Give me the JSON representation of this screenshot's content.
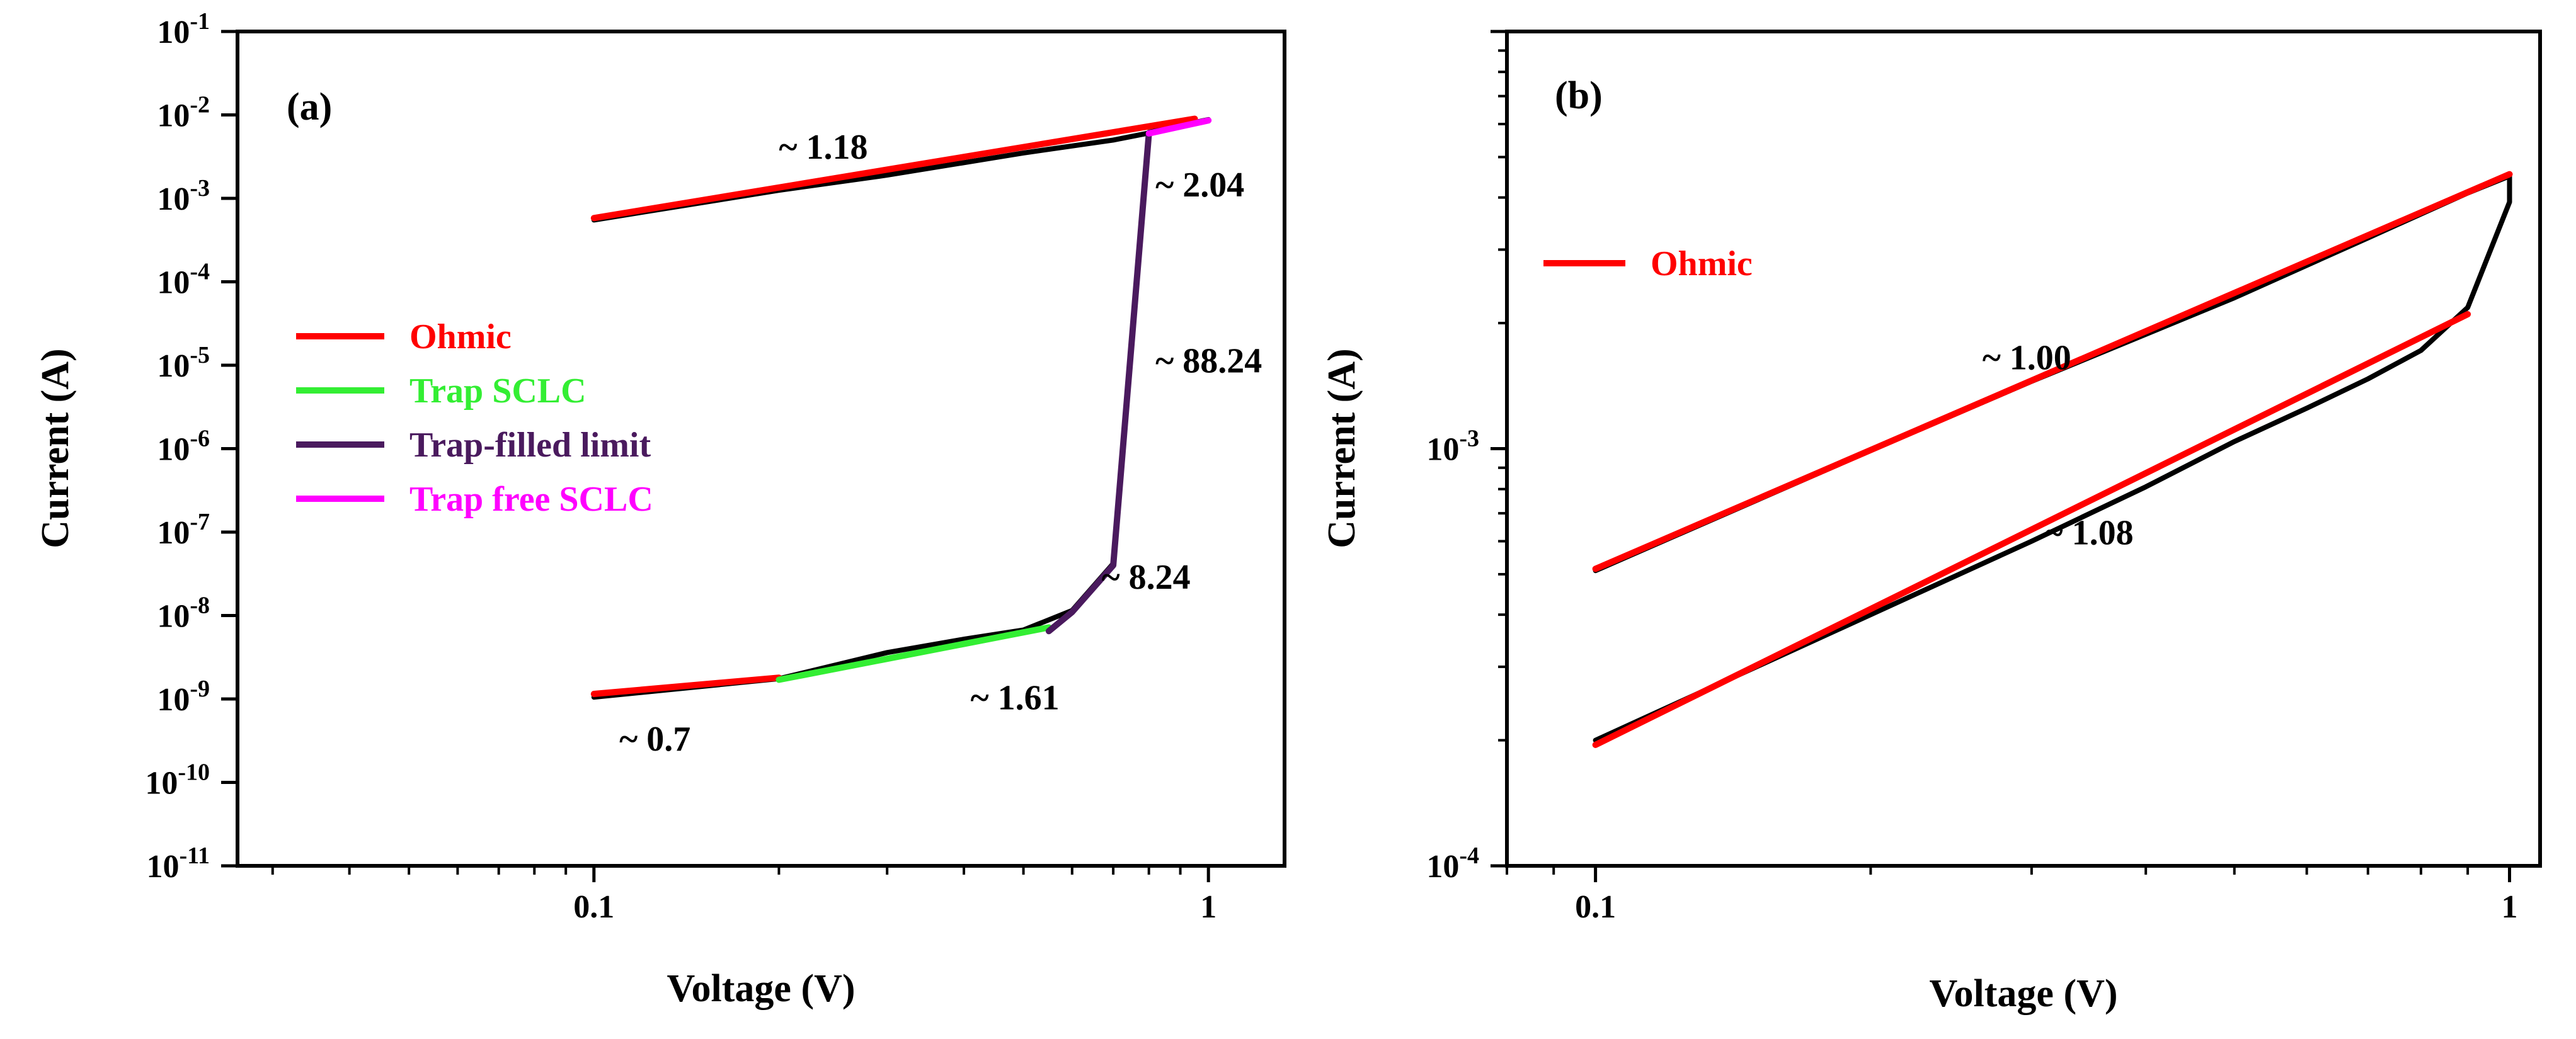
{
  "chart_data": [
    {
      "type": "line",
      "panel_label": "(a)",
      "xlabel": "Voltage (V)",
      "ylabel": "Current (A)",
      "xscale": "log",
      "yscale": "log",
      "xlim": [
        0.0263,
        1.33
      ],
      "ylim": [
        1e-11,
        0.1
      ],
      "x_ticks": [
        {
          "value": 0.1,
          "label": "0.1"
        },
        {
          "value": 1,
          "label": "1"
        }
      ],
      "y_ticks": [
        {
          "value": 1e-11,
          "base": "10",
          "exp": "-11"
        },
        {
          "value": 1e-10,
          "base": "10",
          "exp": "-10"
        },
        {
          "value": 1e-09,
          "base": "10",
          "exp": "-9"
        },
        {
          "value": 1e-08,
          "base": "10",
          "exp": "-8"
        },
        {
          "value": 1e-07,
          "base": "10",
          "exp": "-7"
        },
        {
          "value": 1e-06,
          "base": "10",
          "exp": "-6"
        },
        {
          "value": 1e-05,
          "base": "10",
          "exp": "-5"
        },
        {
          "value": 0.0001,
          "base": "10",
          "exp": "-4"
        },
        {
          "value": 0.001,
          "base": "10",
          "exp": "-3"
        },
        {
          "value": 0.01,
          "base": "10",
          "exp": "-2"
        },
        {
          "value": 0.1,
          "base": "10",
          "exp": "-1"
        }
      ],
      "legend_position": "middle-left",
      "series": [
        {
          "name": "Data",
          "color": "#000000",
          "in_legend": false,
          "points": [
            [
              0.1,
              1.05e-09
            ],
            [
              0.2,
              1.75e-09
            ],
            [
              0.3,
              3.6e-09
            ],
            [
              0.4,
              5.2e-09
            ],
            [
              0.5,
              6.7e-09
            ],
            [
              0.6,
              1.15e-08
            ],
            [
              0.7,
              4.2e-08
            ],
            [
              0.8,
              0.0062
            ],
            [
              0.9,
              0.0075
            ],
            [
              1.0,
              0.0088
            ],
            [
              0.9,
              0.0072
            ],
            [
              0.7,
              0.005
            ],
            [
              0.5,
              0.0035
            ],
            [
              0.3,
              0.0019
            ],
            [
              0.2,
              0.00125
            ],
            [
              0.1,
              0.00055
            ]
          ]
        },
        {
          "name": "Ohmic",
          "color": "#ff0000",
          "in_legend": true,
          "points": [
            [
              0.1,
              1.15e-09
            ],
            [
              0.2,
              1.8e-09
            ]
          ]
        },
        {
          "name": "Ohmic",
          "color": "#ff0000",
          "in_legend": false,
          "points": [
            [
              0.1,
              0.00058
            ],
            [
              0.95,
              0.009
            ]
          ]
        },
        {
          "name": "Trap SCLC",
          "color": "#33ee33",
          "in_legend": true,
          "points": [
            [
              0.2,
              1.7e-09
            ],
            [
              0.55,
              7.2e-09
            ]
          ]
        },
        {
          "name": "Trap-filled limit",
          "color": "#4a1a5e",
          "in_legend": true,
          "points": [
            [
              0.55,
              6.5e-09
            ],
            [
              0.6,
              1.1e-08
            ],
            [
              0.7,
              4e-08
            ],
            [
              0.8,
              0.006
            ]
          ]
        },
        {
          "name": "Trap free SCLC",
          "color": "#ff00ff",
          "in_legend": true,
          "points": [
            [
              0.8,
              0.006
            ],
            [
              1.0,
              0.0086
            ]
          ]
        }
      ],
      "annotations": [
        {
          "text": "~ 1.18",
          "x": 0.2,
          "y": 0.003
        },
        {
          "text": "~ 2.04",
          "x": 0.82,
          "y": 0.00105
        },
        {
          "text": "~ 88.24",
          "x": 0.82,
          "y": 8.2e-06
        },
        {
          "text": "~ 8.24",
          "x": 0.67,
          "y": 2.1e-08
        },
        {
          "text": "~ 1.61",
          "x": 0.41,
          "y": 7.5e-10
        },
        {
          "text": "~ 0.7",
          "x": 0.11,
          "y": 2.4e-10
        }
      ]
    },
    {
      "type": "line",
      "panel_label": "(b)",
      "xlabel": "Voltage (V)",
      "ylabel": "Current (A)",
      "xscale": "log",
      "yscale": "log",
      "xlim": [
        0.08,
        1.08
      ],
      "ylim": [
        0.0001,
        0.01
      ],
      "x_ticks": [
        {
          "value": 0.1,
          "label": "0.1"
        },
        {
          "value": 1,
          "label": "1"
        }
      ],
      "y_ticks": [
        {
          "value": 0.0001,
          "base": "10",
          "exp": "-4"
        },
        {
          "value": 0.001,
          "base": "10",
          "exp": "-3"
        }
      ],
      "legend_position": "upper-left",
      "series": [
        {
          "name": "Data",
          "color": "#000000",
          "in_legend": false,
          "points": [
            [
              0.1,
              0.0002
            ],
            [
              0.2,
              0.0004
            ],
            [
              0.3,
              0.0006
            ],
            [
              0.4,
              0.00081
            ],
            [
              0.5,
              0.00104
            ],
            [
              0.6,
              0.00125
            ],
            [
              0.7,
              0.00147
            ],
            [
              0.8,
              0.00172
            ],
            [
              0.9,
              0.00218
            ],
            [
              1.0,
              0.0039
            ],
            [
              1.0,
              0.0045
            ],
            [
              0.9,
              0.0041
            ],
            [
              0.7,
              0.0032
            ],
            [
              0.5,
              0.0023
            ],
            [
              0.3,
              0.00145
            ],
            [
              0.2,
              0.00099
            ],
            [
              0.1,
              0.00051
            ]
          ]
        },
        {
          "name": "Ohmic",
          "color": "#ff0000",
          "in_legend": true,
          "points": [
            [
              0.1,
              0.000515
            ],
            [
              1.0,
              0.00455
            ]
          ]
        },
        {
          "name": "Ohmic",
          "color": "#ff0000",
          "in_legend": false,
          "points": [
            [
              0.1,
              0.000195
            ],
            [
              0.9,
              0.0021
            ]
          ]
        }
      ],
      "annotations": [
        {
          "text": "~ 1.00",
          "x": 0.265,
          "y": 0.00155
        },
        {
          "text": "~ 1.08",
          "x": 0.31,
          "y": 0.00059
        }
      ]
    }
  ]
}
